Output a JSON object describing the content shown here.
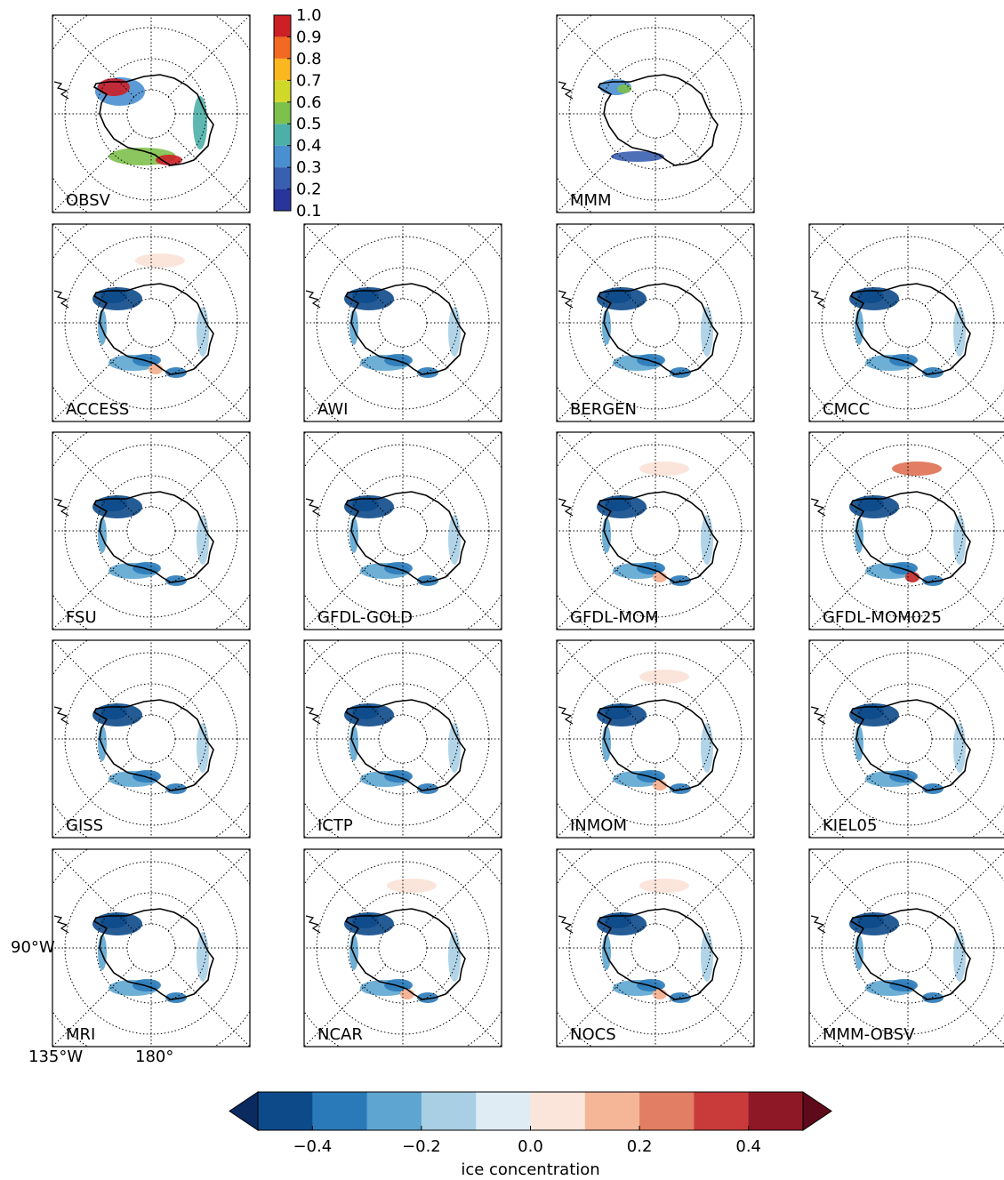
{
  "panels": [
    {
      "label": "OBSV"
    },
    {
      "label": "MMM"
    },
    {
      "label": "ACCESS"
    },
    {
      "label": "AWI"
    },
    {
      "label": "BERGEN"
    },
    {
      "label": "CMCC"
    },
    {
      "label": "FSU"
    },
    {
      "label": "GFDL-GOLD"
    },
    {
      "label": "GFDL-MOM"
    },
    {
      "label": "GFDL-MOM025"
    },
    {
      "label": "GISS"
    },
    {
      "label": "ICTP"
    },
    {
      "label": "INMOM"
    },
    {
      "label": "KIEL05"
    },
    {
      "label": "MRI"
    },
    {
      "label": "NCAR"
    },
    {
      "label": "NOCS"
    },
    {
      "label": "MMM-OBSV"
    }
  ],
  "axis_labels": [
    "90°W",
    "135°W",
    "180°"
  ],
  "colorbar_top": {
    "lim": [
      0.1,
      1.0
    ],
    "ticks": [
      {
        "value": 1,
        "label": "1.0"
      },
      0.9,
      0.8,
      0.7,
      0.6,
      0.5,
      0.4,
      0.3,
      0.2,
      0.1
    ],
    "colors": [
      "#28359a",
      "#3a5fb0",
      "#4a8fd0",
      "#4cb0a8",
      "#7ec04c",
      "#d0d82a",
      "#fbb720",
      "#f26a22",
      "#cc1f26"
    ]
  },
  "colorbar_bottom": {
    "label": "ice concentration",
    "lim": [
      -0.5,
      0.5
    ],
    "ticks": [
      {
        "value": -0.4,
        "label": "−0.4"
      },
      {
        "value": -0.2,
        "label": "−0.2"
      },
      {
        "value": 0,
        "label": "0.0"
      },
      0.2,
      0.4
    ],
    "colors": [
      "#0d4a8a",
      "#2a7ab9",
      "#5ea6d1",
      "#a9cfe5",
      "#e0ecf4",
      "#fbe5da",
      "#f5b698",
      "#e17e63",
      "#c93b3b",
      "#8e1826"
    ],
    "under": "#0a2a60",
    "over": "#5e0a1b"
  }
}
